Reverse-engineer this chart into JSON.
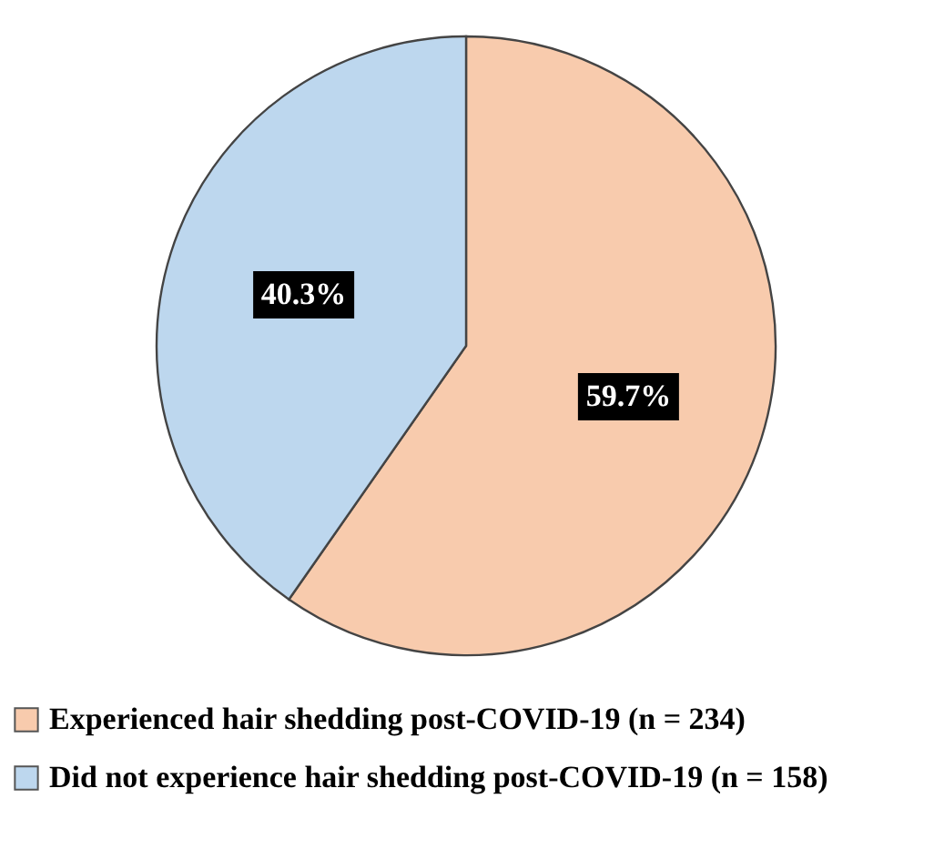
{
  "chart_data": {
    "type": "pie",
    "categories": [
      "Experienced hair shedding post-COVID-19 (n = 234)",
      "Did not experience hair shedding post-COVID-19 (n = 158)"
    ],
    "values": [
      59.7,
      40.3
    ],
    "colors": [
      "#f8cbad",
      "#bdd7ee"
    ],
    "value_labels": [
      "59.7%",
      "40.3%"
    ],
    "legend": "bottom"
  }
}
